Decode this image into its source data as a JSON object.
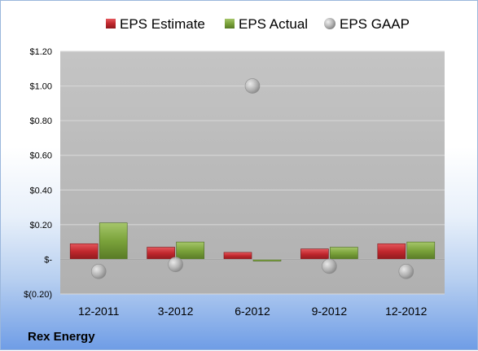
{
  "company": "Rex Energy",
  "colors": {
    "estimate": "#c0272d",
    "actual": "#7aa23a",
    "gaap": "#a6a6a6",
    "plot_bg": "#bfbfbf"
  },
  "chart_data": {
    "type": "bar",
    "categories": [
      "12-2011",
      "3-2012",
      "6-2012",
      "9-2012",
      "12-2012"
    ],
    "series": [
      {
        "name": "EPS Estimate",
        "kind": "bar",
        "values": [
          0.09,
          0.07,
          0.04,
          0.06,
          0.09
        ]
      },
      {
        "name": "EPS Actual",
        "kind": "bar",
        "values": [
          0.21,
          0.1,
          -0.01,
          0.07,
          0.1
        ]
      },
      {
        "name": "EPS GAAP",
        "kind": "marker",
        "values": [
          -0.07,
          -0.03,
          1.0,
          -0.04,
          -0.07
        ]
      }
    ],
    "yticks": [
      {
        "value": 1.2,
        "label": "$1.20"
      },
      {
        "value": 1.0,
        "label": "$1.00"
      },
      {
        "value": 0.8,
        "label": "$0.80"
      },
      {
        "value": 0.6,
        "label": "$0.60"
      },
      {
        "value": 0.4,
        "label": "$0.40"
      },
      {
        "value": 0.2,
        "label": "$0.20"
      },
      {
        "value": 0.0,
        "label": "$-"
      },
      {
        "value": -0.2,
        "label": "$(0.20)"
      }
    ],
    "ylim": [
      -0.2,
      1.2
    ],
    "grid": true,
    "legend_position": "top"
  }
}
